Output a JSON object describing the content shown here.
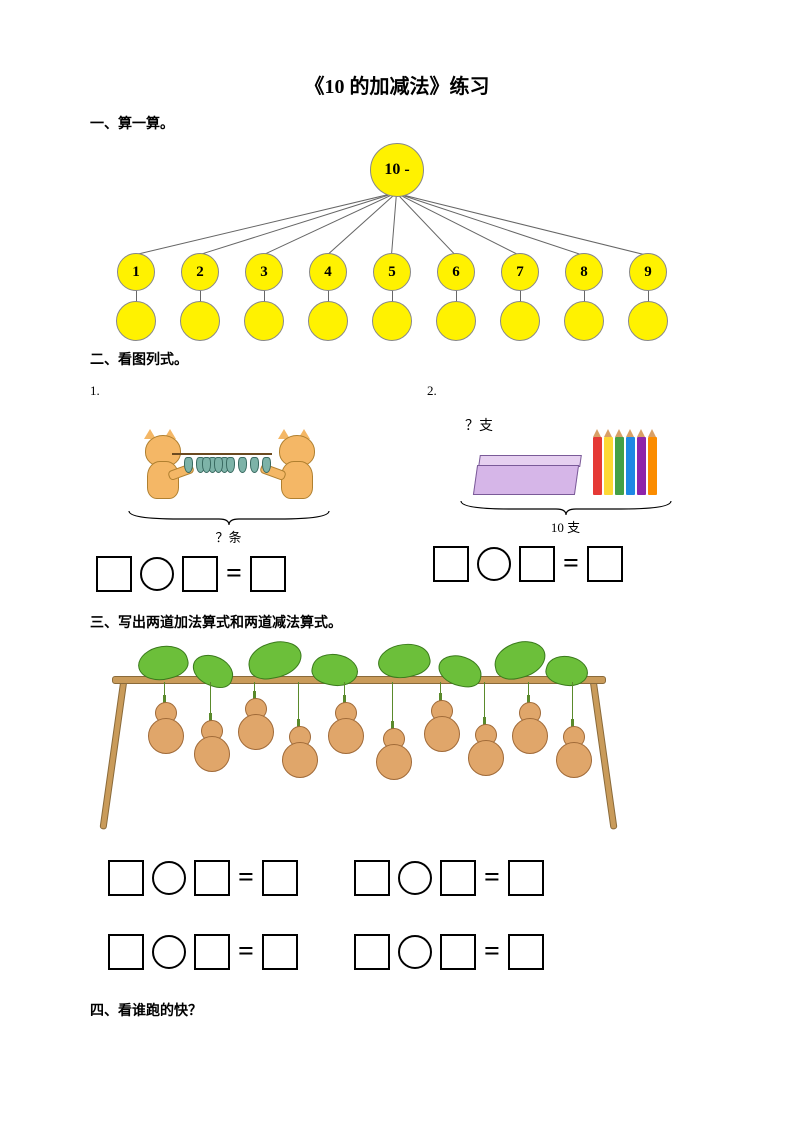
{
  "title": "《10 的加减法》练习",
  "section1": {
    "heading": "一、算一算。",
    "top_label": "10 -",
    "mids": [
      "1",
      "2",
      "3",
      "4",
      "5",
      "6",
      "7",
      "8",
      "9"
    ],
    "circle_fill": "#fff200",
    "circle_border": "#888888"
  },
  "section2": {
    "heading": "二、看图列式。",
    "items": [
      {
        "num": "1.",
        "bracket_label": "？条"
      },
      {
        "num": "2.",
        "box_label": "？支",
        "total_label": "10 支"
      }
    ],
    "pencil_colors": [
      "#e53935",
      "#fdd835",
      "#43a047",
      "#1e88e5",
      "#8e24aa",
      "#fb8c00"
    ]
  },
  "section3": {
    "heading": "三、写出两道加法算式和两道减法算式。",
    "gourd_color": "#e0a66a",
    "leaf_color": "#6cbf3a"
  },
  "section4": {
    "heading": "四、看谁跑的快？"
  }
}
